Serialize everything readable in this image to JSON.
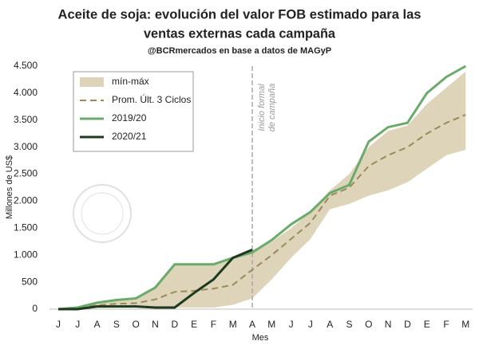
{
  "chart_data": {
    "type": "line",
    "title": [
      "Aceite de soja: evolución del valor FOB estimado para las",
      "ventas externas cada campaña"
    ],
    "subtitle": "@BCRmercados en base a datos de MAGyP",
    "y_label": "Millones de US$",
    "x_label": "Mes",
    "annotation": [
      "Inicio formal",
      "de campaña"
    ],
    "categories": [
      "J",
      "J",
      "A",
      "S",
      "O",
      "N",
      "D",
      "E",
      "F",
      "M",
      "A",
      "M",
      "J",
      "J",
      "A",
      "S",
      "O",
      "N",
      "D",
      "E",
      "F",
      "M"
    ],
    "band": {
      "name": "mín-máx",
      "color": "#ddd4b9",
      "upper": [
        0,
        30,
        120,
        170,
        200,
        380,
        820,
        820,
        820,
        950,
        1100,
        1250,
        1500,
        1800,
        2200,
        2500,
        3000,
        3300,
        3400,
        3800,
        4100,
        4400
      ],
      "lower": [
        0,
        0,
        20,
        30,
        30,
        30,
        30,
        30,
        30,
        80,
        200,
        550,
        950,
        1300,
        1850,
        1950,
        2100,
        2200,
        2350,
        2600,
        2850,
        2950
      ]
    },
    "series": [
      {
        "name": "Prom. Últ. 3 Ciclos",
        "color": "#9a8a5a",
        "dashed": true,
        "values": [
          0,
          20,
          70,
          100,
          110,
          180,
          320,
          340,
          380,
          450,
          730,
          1000,
          1300,
          1600,
          2100,
          2250,
          2650,
          2850,
          3000,
          3250,
          3450,
          3600
        ]
      },
      {
        "name": "2019/20",
        "color": "#6aaa6a",
        "dashed": false,
        "values": [
          0,
          30,
          120,
          170,
          200,
          400,
          830,
          830,
          830,
          950,
          1050,
          1280,
          1570,
          1800,
          2150,
          2300,
          3100,
          3370,
          3450,
          4000,
          4300,
          4500
        ]
      },
      {
        "name": "2020/21",
        "color": "#1e3a1e",
        "dashed": false,
        "values": [
          0,
          0,
          50,
          50,
          50,
          30,
          30,
          300,
          550,
          950,
          1100,
          null,
          null,
          null,
          null,
          null,
          null,
          null,
          null,
          null,
          null,
          null
        ]
      }
    ],
    "ylim": [
      0,
      4500
    ],
    "yticks": [
      0,
      500,
      {
        "value": 1000,
        "label": "1.000"
      },
      {
        "value": 1500,
        "label": "1.500"
      },
      {
        "value": 2000,
        "label": "2.000"
      },
      {
        "value": 2500,
        "label": "2.500"
      },
      {
        "value": 3000,
        "label": "3.000"
      },
      {
        "value": 3500,
        "label": "3.500"
      },
      {
        "value": 4000,
        "label": "4.000"
      },
      {
        "value": 4500,
        "label": "4.500"
      }
    ],
    "grid": false
  }
}
